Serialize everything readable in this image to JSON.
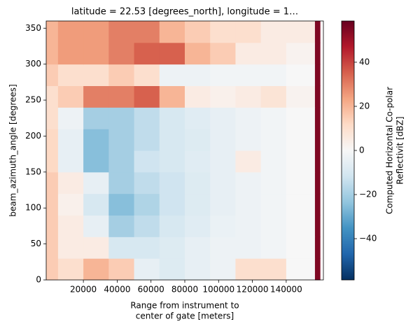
{
  "chart_data": {
    "type": "heatmap",
    "title": "latitude = 22.53 [degrees_north], longitude = 1…",
    "x_label": [
      "Range from instrument to",
      "center of gate [meters]"
    ],
    "y_label": "beam_azimuth_angle [degrees]",
    "colorbar_label": [
      "Computed Horizontal Co-polar",
      "Reflectivit [dBZ]"
    ],
    "x_bins": [
      -2000,
      5000,
      20000,
      35000,
      50000,
      65000,
      80000,
      95000,
      110000,
      125000,
      140000,
      157000,
      160000,
      162000
    ],
    "y_bins": [
      0,
      30,
      60,
      90,
      120,
      150,
      180,
      210,
      240,
      270,
      300,
      330,
      360
    ],
    "values": [
      [
        15,
        10,
        20,
        15,
        -5,
        -8,
        -5,
        -3,
        10,
        10,
        0,
        55,
        null
      ],
      [
        15,
        5,
        5,
        -10,
        -10,
        -8,
        -5,
        -3,
        -3,
        -2,
        0,
        55,
        null
      ],
      [
        15,
        5,
        -5,
        -20,
        -15,
        -10,
        -7,
        -4,
        -3,
        -2,
        0,
        55,
        null
      ],
      [
        15,
        3,
        -10,
        -25,
        -18,
        -12,
        -8,
        -5,
        -3,
        -2,
        0,
        55,
        null
      ],
      [
        15,
        5,
        -5,
        -20,
        -15,
        -12,
        -8,
        -5,
        -3,
        -2,
        0,
        55,
        null
      ],
      [
        12,
        -5,
        -25,
        -20,
        -12,
        -10,
        -7,
        -5,
        5,
        -2,
        0,
        55,
        null
      ],
      [
        12,
        -5,
        -25,
        -20,
        -15,
        -10,
        -8,
        -5,
        -3,
        -2,
        0,
        55,
        null
      ],
      [
        10,
        -3,
        -20,
        -20,
        -15,
        -10,
        -7,
        -5,
        -3,
        -2,
        0,
        55,
        null
      ],
      [
        10,
        15,
        30,
        30,
        35,
        20,
        5,
        3,
        5,
        8,
        2,
        55,
        null
      ],
      [
        15,
        10,
        10,
        15,
        10,
        -3,
        -3,
        -2,
        -2,
        -2,
        0,
        55,
        null
      ],
      [
        20,
        25,
        25,
        30,
        35,
        35,
        20,
        15,
        5,
        5,
        2,
        55,
        null
      ],
      [
        20,
        25,
        25,
        30,
        30,
        20,
        15,
        10,
        10,
        5,
        5,
        55,
        null
      ]
    ],
    "colormap": [
      "#053061",
      "#2166ac",
      "#4393c3",
      "#92c5de",
      "#d1e5f0",
      "#f7f7f7",
      "#fddbc7",
      "#f4a582",
      "#d6604d",
      "#b2182b",
      "#67001f"
    ],
    "xlim": [
      -2000,
      162000
    ],
    "ylim": [
      0,
      360
    ],
    "clim": [
      -58.7,
      58.7
    ],
    "xticks": [
      20000,
      40000,
      60000,
      80000,
      100000,
      120000,
      140000
    ],
    "yticks": [
      0,
      50,
      100,
      150,
      200,
      250,
      300,
      350
    ],
    "cticks": [
      {
        "value": -40,
        "label": "−40"
      },
      {
        "value": -20,
        "label": "−20"
      },
      0,
      20,
      40
    ]
  }
}
